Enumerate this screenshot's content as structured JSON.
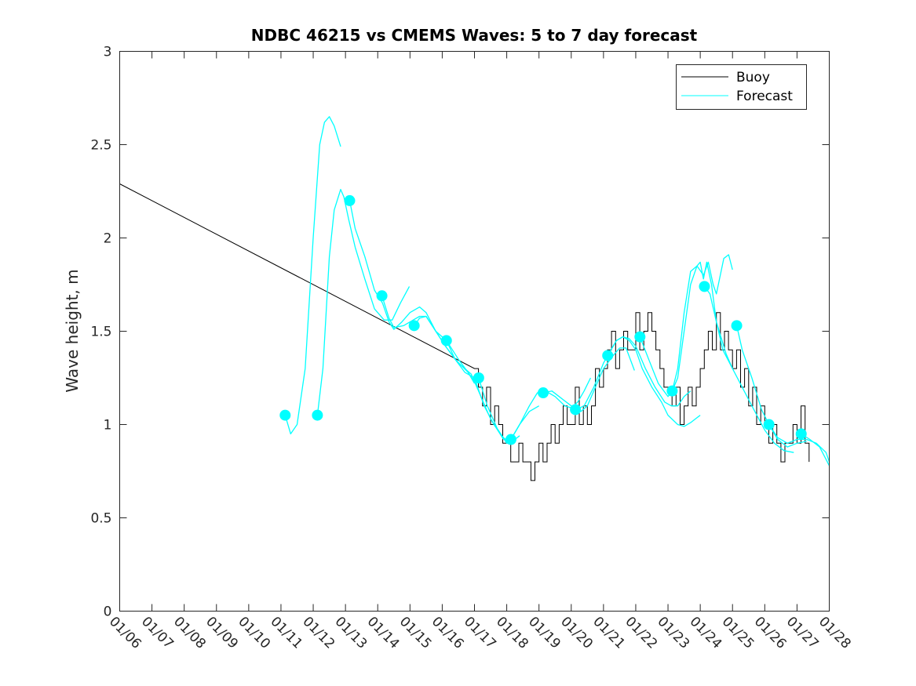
{
  "chart_data": {
    "type": "line",
    "title": "NDBC 46215 vs CMEMS Waves: 5 to 7 day forecast",
    "xlabel": "",
    "ylabel": "Wave height, m",
    "x_units": "days since 01/06",
    "xlim": [
      0,
      22
    ],
    "ylim": [
      0,
      3
    ],
    "grid": false,
    "legend_position": "top-right",
    "x_tick_labels": [
      "01/06",
      "01/07",
      "01/08",
      "01/09",
      "01/10",
      "01/11",
      "01/12",
      "01/13",
      "01/14",
      "01/15",
      "01/16",
      "01/17",
      "01/18",
      "01/19",
      "01/20",
      "01/21",
      "01/22",
      "01/23",
      "01/24",
      "01/25",
      "01/26",
      "01/27",
      "01/28"
    ],
    "y_ticks": [
      0,
      0.5,
      1,
      1.5,
      2,
      2.5,
      3
    ],
    "y_tick_labels": [
      "0",
      "0.5",
      "1",
      "1.5",
      "2",
      "2.5",
      "3"
    ],
    "legend": [
      {
        "label": "Buoy",
        "color": "#000000"
      },
      {
        "label": "Forecast",
        "color": "#00ffff"
      }
    ],
    "colors": {
      "buoy": "#000000",
      "forecast": "#00ffff",
      "axes": "#262626"
    },
    "buoy": {
      "start": [
        0,
        2.29
      ],
      "t0": 11.0,
      "dt": 0.125,
      "values": [
        1.3,
        1.2,
        1.1,
        1.2,
        1.0,
        1.1,
        1.0,
        0.9,
        0.9,
        0.8,
        0.8,
        0.9,
        0.8,
        0.8,
        0.7,
        0.8,
        0.9,
        0.8,
        0.9,
        1.0,
        0.9,
        1.0,
        1.1,
        1.0,
        1.0,
        1.2,
        1.0,
        1.1,
        1.0,
        1.1,
        1.3,
        1.2,
        1.3,
        1.4,
        1.5,
        1.3,
        1.4,
        1.5,
        1.4,
        1.4,
        1.6,
        1.4,
        1.5,
        1.6,
        1.5,
        1.4,
        1.3,
        1.2,
        1.2,
        1.1,
        1.2,
        1.0,
        1.1,
        1.2,
        1.1,
        1.2,
        1.3,
        1.4,
        1.5,
        1.4,
        1.6,
        1.4,
        1.5,
        1.4,
        1.3,
        1.4,
        1.2,
        1.3,
        1.1,
        1.2,
        1.0,
        1.1,
        1.0,
        0.9,
        1.0,
        0.9,
        0.8,
        0.9,
        0.9,
        1.0,
        0.9,
        1.1,
        0.9,
        0.8
      ]
    },
    "forecast_points": [
      [
        5.13,
        1.05
      ],
      [
        6.13,
        1.05
      ],
      [
        7.13,
        2.2
      ],
      [
        8.13,
        1.69
      ],
      [
        9.13,
        1.53
      ],
      [
        10.13,
        1.45
      ],
      [
        11.13,
        1.25
      ],
      [
        12.13,
        0.92
      ],
      [
        13.13,
        1.17
      ],
      [
        14.13,
        1.08
      ],
      [
        15.13,
        1.37
      ],
      [
        16.13,
        1.47
      ],
      [
        17.13,
        1.18
      ],
      [
        18.13,
        1.74
      ],
      [
        19.13,
        1.53
      ],
      [
        20.13,
        1.0
      ],
      [
        21.13,
        0.95
      ]
    ],
    "forecast_runs": [
      [
        [
          5.13,
          1.05
        ],
        [
          5.3,
          0.95
        ],
        [
          5.5,
          1.0
        ],
        [
          5.75,
          1.3
        ],
        [
          6.0,
          2.0
        ],
        [
          6.2,
          2.5
        ],
        [
          6.35,
          2.62
        ],
        [
          6.5,
          2.65
        ],
        [
          6.65,
          2.6
        ],
        [
          6.85,
          2.49
        ]
      ],
      [
        [
          6.13,
          1.05
        ],
        [
          6.3,
          1.3
        ],
        [
          6.5,
          1.9
        ],
        [
          6.65,
          2.15
        ],
        [
          6.85,
          2.26
        ],
        [
          6.95,
          2.22
        ],
        [
          7.1,
          2.1
        ],
        [
          7.3,
          1.95
        ],
        [
          7.6,
          1.78
        ],
        [
          7.9,
          1.62
        ],
        [
          8.2,
          1.56
        ],
        [
          8.45,
          1.56
        ],
        [
          8.7,
          1.65
        ],
        [
          8.98,
          1.74
        ]
      ],
      [
        [
          7.13,
          2.2
        ],
        [
          7.3,
          2.05
        ],
        [
          7.6,
          1.9
        ],
        [
          7.9,
          1.72
        ],
        [
          8.15,
          1.65
        ],
        [
          8.35,
          1.55
        ],
        [
          8.5,
          1.51
        ],
        [
          8.75,
          1.55
        ],
        [
          9.0,
          1.6
        ],
        [
          9.3,
          1.63
        ],
        [
          9.5,
          1.6
        ],
        [
          9.8,
          1.5
        ],
        [
          10.1,
          1.42
        ],
        [
          10.4,
          1.35
        ],
        [
          10.8,
          1.28
        ],
        [
          11.0,
          1.22
        ]
      ],
      [
        [
          8.13,
          1.69
        ],
        [
          8.35,
          1.57
        ],
        [
          8.5,
          1.52
        ],
        [
          8.8,
          1.53
        ],
        [
          9.1,
          1.56
        ],
        [
          9.3,
          1.58
        ],
        [
          9.5,
          1.58
        ],
        [
          9.8,
          1.5
        ],
        [
          10.13,
          1.45
        ],
        [
          10.5,
          1.35
        ],
        [
          10.8,
          1.28
        ],
        [
          11.1,
          1.2
        ]
      ],
      [
        [
          9.13,
          1.53
        ],
        [
          9.3,
          1.57
        ],
        [
          9.5,
          1.58
        ],
        [
          9.8,
          1.5
        ],
        [
          10.1,
          1.42
        ],
        [
          10.5,
          1.33
        ],
        [
          10.9,
          1.27
        ],
        [
          11.2,
          1.15
        ],
        [
          11.5,
          1.03
        ],
        [
          11.9,
          0.92
        ]
      ],
      [
        [
          10.13,
          1.45
        ],
        [
          10.4,
          1.35
        ],
        [
          10.7,
          1.28
        ],
        [
          11.0,
          1.25
        ],
        [
          11.3,
          1.1
        ],
        [
          11.6,
          1.0
        ],
        [
          11.9,
          0.93
        ],
        [
          12.1,
          0.9
        ],
        [
          12.4,
          0.94
        ]
      ],
      [
        [
          11.13,
          1.25
        ],
        [
          11.4,
          1.1
        ],
        [
          11.7,
          0.98
        ],
        [
          12.0,
          0.9
        ],
        [
          12.13,
          0.92
        ],
        [
          12.4,
          1.0
        ],
        [
          12.7,
          1.07
        ],
        [
          13.0,
          1.1
        ]
      ],
      [
        [
          12.13,
          0.92
        ],
        [
          12.4,
          1.0
        ],
        [
          12.7,
          1.1
        ],
        [
          12.95,
          1.17
        ],
        [
          13.2,
          1.18
        ],
        [
          13.5,
          1.15
        ],
        [
          13.8,
          1.1
        ],
        [
          14.0,
          1.09
        ],
        [
          14.2,
          1.12
        ],
        [
          14.4,
          1.18
        ],
        [
          14.6,
          1.25
        ]
      ],
      [
        [
          13.13,
          1.17
        ],
        [
          13.4,
          1.18
        ],
        [
          13.7,
          1.14
        ],
        [
          14.0,
          1.1
        ],
        [
          14.3,
          1.07
        ],
        [
          14.5,
          1.1
        ],
        [
          14.8,
          1.22
        ],
        [
          15.0,
          1.3
        ],
        [
          15.3,
          1.37
        ],
        [
          15.5,
          1.41
        ],
        [
          15.7,
          1.41
        ],
        [
          15.96,
          1.29
        ]
      ],
      [
        [
          14.13,
          1.08
        ],
        [
          14.4,
          1.1
        ],
        [
          14.7,
          1.2
        ],
        [
          15.0,
          1.33
        ],
        [
          15.13,
          1.37
        ],
        [
          15.4,
          1.45
        ],
        [
          15.6,
          1.47
        ],
        [
          15.8,
          1.45
        ],
        [
          16.0,
          1.4
        ],
        [
          16.2,
          1.3
        ],
        [
          16.5,
          1.2
        ],
        [
          16.8,
          1.12
        ],
        [
          17.0,
          1.05
        ],
        [
          17.3,
          1.0
        ],
        [
          17.5,
          0.99
        ],
        [
          17.7,
          1.01
        ],
        [
          18.0,
          1.05
        ]
      ],
      [
        [
          15.13,
          1.37
        ],
        [
          15.4,
          1.45
        ],
        [
          15.6,
          1.47
        ],
        [
          15.8,
          1.46
        ],
        [
          16.0,
          1.42
        ],
        [
          16.3,
          1.3
        ],
        [
          16.6,
          1.2
        ],
        [
          16.9,
          1.12
        ],
        [
          17.1,
          1.1
        ],
        [
          17.3,
          1.1
        ],
        [
          17.5,
          1.15
        ],
        [
          17.7,
          1.18
        ]
      ],
      [
        [
          16.13,
          1.47
        ],
        [
          16.4,
          1.35
        ],
        [
          16.7,
          1.22
        ],
        [
          17.0,
          1.15
        ],
        [
          17.13,
          1.18
        ],
        [
          17.3,
          1.25
        ],
        [
          17.5,
          1.5
        ],
        [
          17.7,
          1.75
        ],
        [
          17.9,
          1.85
        ],
        [
          18.0,
          1.87
        ],
        [
          18.1,
          1.78
        ],
        [
          18.2,
          1.87
        ],
        [
          18.35,
          1.75
        ],
        [
          18.5,
          1.55
        ],
        [
          18.8,
          1.38
        ],
        [
          19.0,
          1.3
        ]
      ],
      [
        [
          17.13,
          1.18
        ],
        [
          17.3,
          1.3
        ],
        [
          17.5,
          1.6
        ],
        [
          17.7,
          1.82
        ],
        [
          17.9,
          1.85
        ],
        [
          18.1,
          1.8
        ],
        [
          18.25,
          1.87
        ],
        [
          18.4,
          1.75
        ],
        [
          18.5,
          1.7
        ],
        [
          18.73,
          1.89
        ],
        [
          18.88,
          1.91
        ],
        [
          19.0,
          1.83
        ]
      ],
      [
        [
          18.13,
          1.74
        ],
        [
          18.3,
          1.7
        ],
        [
          18.5,
          1.55
        ],
        [
          18.7,
          1.4
        ],
        [
          19.0,
          1.3
        ],
        [
          19.3,
          1.2
        ],
        [
          19.6,
          1.1
        ],
        [
          20.0,
          0.97
        ],
        [
          20.3,
          0.9
        ],
        [
          20.6,
          0.86
        ],
        [
          20.9,
          0.85
        ]
      ],
      [
        [
          19.13,
          1.53
        ],
        [
          19.3,
          1.4
        ],
        [
          19.6,
          1.25
        ],
        [
          19.9,
          1.08
        ],
        [
          20.13,
          1.0
        ],
        [
          20.4,
          0.92
        ],
        [
          20.7,
          0.88
        ],
        [
          21.0,
          0.9
        ],
        [
          21.3,
          0.91
        ]
      ],
      [
        [
          20.13,
          1.0
        ],
        [
          20.4,
          0.93
        ],
        [
          20.7,
          0.9
        ],
        [
          21.0,
          0.92
        ],
        [
          21.3,
          0.92
        ],
        [
          21.6,
          0.9
        ],
        [
          21.9,
          0.85
        ],
        [
          22.0,
          0.8
        ]
      ],
      [
        [
          21.13,
          0.95
        ],
        [
          21.4,
          0.92
        ],
        [
          21.7,
          0.88
        ],
        [
          22.0,
          0.78
        ]
      ]
    ]
  }
}
